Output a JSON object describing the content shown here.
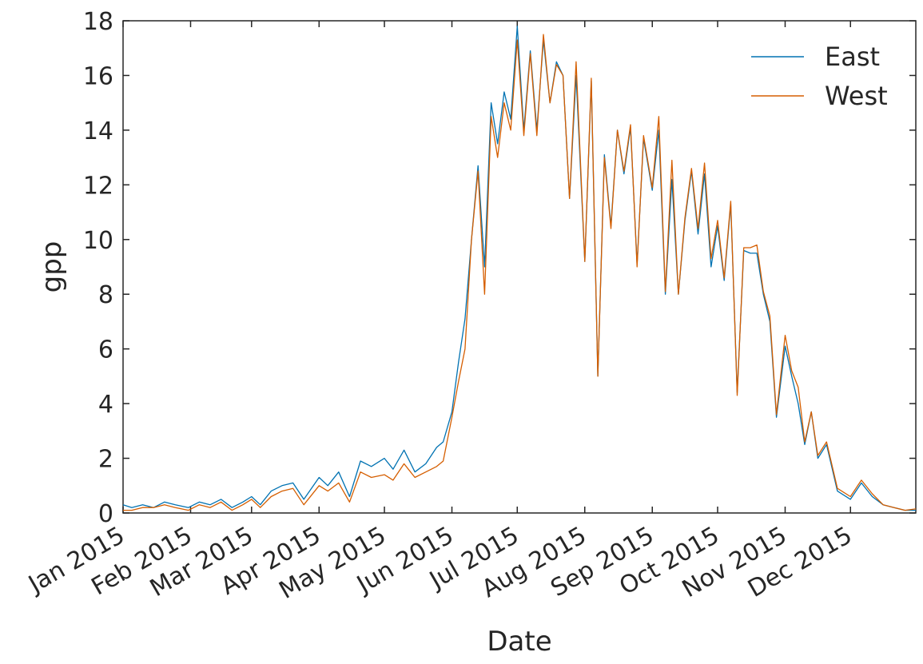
{
  "chart_data": {
    "type": "line",
    "xlabel": "Date",
    "ylabel": "gpp",
    "xlim": [
      "2015-01-01",
      "2015-12-31"
    ],
    "ylim": [
      0,
      18
    ],
    "x_ticks": [
      "2015-01-01",
      "2015-02-01",
      "2015-03-01",
      "2015-04-01",
      "2015-05-01",
      "2015-06-01",
      "2015-07-01",
      "2015-08-01",
      "2015-09-01",
      "2015-10-01",
      "2015-11-01",
      "2015-12-01"
    ],
    "x_tick_labels": [
      "Jan 2015",
      "Feb 2015",
      "Mar 2015",
      "Apr 2015",
      "May 2015",
      "Jun 2015",
      "Jul 2015",
      "Aug 2015",
      "Sep 2015",
      "Oct 2015",
      "Nov 2015",
      "Dec 2015"
    ],
    "y_ticks": [
      0,
      2,
      4,
      6,
      8,
      10,
      12,
      14,
      16,
      18
    ],
    "y_tick_labels": [
      "0",
      "2",
      "4",
      "6",
      "8",
      "10",
      "12",
      "14",
      "16",
      "18"
    ],
    "grid": false,
    "legend_position": "top-right",
    "x": [
      "2015-01-01",
      "2015-01-05",
      "2015-01-10",
      "2015-01-15",
      "2015-01-20",
      "2015-01-25",
      "2015-01-31",
      "2015-02-05",
      "2015-02-10",
      "2015-02-15",
      "2015-02-20",
      "2015-02-25",
      "2015-03-01",
      "2015-03-05",
      "2015-03-10",
      "2015-03-15",
      "2015-03-20",
      "2015-03-25",
      "2015-04-01",
      "2015-04-05",
      "2015-04-10",
      "2015-04-15",
      "2015-04-20",
      "2015-04-25",
      "2015-05-01",
      "2015-05-05",
      "2015-05-10",
      "2015-05-15",
      "2015-05-20",
      "2015-05-25",
      "2015-05-28",
      "2015-06-01",
      "2015-06-04",
      "2015-06-07",
      "2015-06-10",
      "2015-06-13",
      "2015-06-16",
      "2015-06-19",
      "2015-06-22",
      "2015-06-25",
      "2015-06-28",
      "2015-07-01",
      "2015-07-04",
      "2015-07-07",
      "2015-07-10",
      "2015-07-13",
      "2015-07-16",
      "2015-07-19",
      "2015-07-22",
      "2015-07-25",
      "2015-07-28",
      "2015-08-01",
      "2015-08-04",
      "2015-08-07",
      "2015-08-10",
      "2015-08-13",
      "2015-08-16",
      "2015-08-19",
      "2015-08-22",
      "2015-08-25",
      "2015-08-28",
      "2015-09-01",
      "2015-09-04",
      "2015-09-07",
      "2015-09-10",
      "2015-09-13",
      "2015-09-16",
      "2015-09-19",
      "2015-09-22",
      "2015-09-25",
      "2015-09-28",
      "2015-10-01",
      "2015-10-04",
      "2015-10-07",
      "2015-10-10",
      "2015-10-13",
      "2015-10-16",
      "2015-10-19",
      "2015-10-22",
      "2015-10-25",
      "2015-10-28",
      "2015-11-01",
      "2015-11-04",
      "2015-11-07",
      "2015-11-10",
      "2015-11-13",
      "2015-11-16",
      "2015-11-20",
      "2015-11-25",
      "2015-12-01",
      "2015-12-06",
      "2015-12-11",
      "2015-12-16",
      "2015-12-21",
      "2015-12-26",
      "2015-12-31"
    ],
    "series": [
      {
        "name": "East",
        "color": "#0072b2",
        "values": [
          0.3,
          0.2,
          0.3,
          0.2,
          0.4,
          0.3,
          0.2,
          0.4,
          0.3,
          0.5,
          0.2,
          0.4,
          0.6,
          0.3,
          0.8,
          1.0,
          1.1,
          0.5,
          1.3,
          1.0,
          1.5,
          0.6,
          1.9,
          1.7,
          2.0,
          1.6,
          2.3,
          1.5,
          1.8,
          2.4,
          2.6,
          3.7,
          5.5,
          7.1,
          10.0,
          12.7,
          9.0,
          15.0,
          13.5,
          15.4,
          14.4,
          17.8,
          14.0,
          16.9,
          14.0,
          17.3,
          15.0,
          16.5,
          16.0,
          11.5,
          16.0,
          9.2,
          15.8,
          5.0,
          13.1,
          10.5,
          14.0,
          12.4,
          14.1,
          9.1,
          13.7,
          11.8,
          14.0,
          8.0,
          12.2,
          8.0,
          10.7,
          12.5,
          10.2,
          12.4,
          9.0,
          10.5,
          8.5,
          11.3,
          4.4,
          9.6,
          9.5,
          9.5,
          8.0,
          7.0,
          3.5,
          6.1,
          5.0,
          4.0,
          2.5,
          3.7,
          2.0,
          2.5,
          0.8,
          0.5,
          1.1,
          0.6,
          0.3,
          0.2,
          0.1,
          0.1
        ]
      },
      {
        "name": "West",
        "color": "#d55e00",
        "values": [
          0.1,
          0.1,
          0.2,
          0.2,
          0.3,
          0.2,
          0.1,
          0.3,
          0.2,
          0.4,
          0.1,
          0.3,
          0.5,
          0.2,
          0.6,
          0.8,
          0.9,
          0.3,
          1.0,
          0.8,
          1.1,
          0.4,
          1.5,
          1.3,
          1.4,
          1.2,
          1.8,
          1.3,
          1.5,
          1.7,
          1.9,
          3.5,
          4.8,
          6.0,
          10.0,
          12.5,
          8.0,
          14.5,
          13.0,
          15.0,
          14.0,
          17.3,
          13.8,
          16.8,
          13.8,
          17.5,
          15.0,
          16.4,
          16.0,
          11.5,
          16.5,
          9.2,
          15.9,
          5.0,
          13.0,
          10.4,
          14.0,
          12.5,
          14.2,
          9.0,
          13.8,
          11.9,
          14.5,
          8.1,
          12.9,
          8.0,
          10.8,
          12.6,
          10.4,
          12.8,
          9.3,
          10.7,
          8.6,
          11.4,
          4.3,
          9.7,
          9.7,
          9.8,
          8.1,
          7.2,
          3.6,
          6.5,
          5.2,
          4.6,
          2.6,
          3.7,
          2.1,
          2.6,
          0.9,
          0.6,
          1.2,
          0.7,
          0.3,
          0.2,
          0.1,
          0.15
        ]
      }
    ]
  }
}
